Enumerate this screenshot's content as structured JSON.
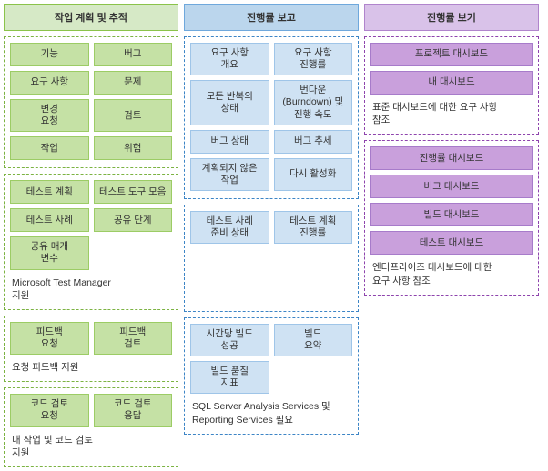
{
  "colors": {
    "green_header_bg": "#d6e9c6",
    "green_header_border": "#8bc34a",
    "green_item_bg": "#c5e1a5",
    "green_item_border": "#9ccc65",
    "green_dash": "#7cb342",
    "blue_header_bg": "#bbd6ed",
    "blue_header_border": "#6fa8dc",
    "blue_item_bg": "#cfe2f3",
    "blue_item_border": "#9fc5e8",
    "blue_dash": "#3d85c6",
    "purple_header_bg": "#d9c2e9",
    "purple_header_border": "#b084cc",
    "purple_item_bg": "#c9a0dc",
    "purple_item_border": "#a77bca",
    "purple_dash": "#8e44ad",
    "text": "#333333"
  },
  "col1": {
    "header": "작업 계획 및 추적",
    "sections": [
      {
        "items": [
          "기능",
          "버그",
          "요구 사항",
          "문제",
          "변경\n요청",
          "검토",
          "작업",
          "위험"
        ],
        "caption": null
      },
      {
        "items": [
          "테스트 계획",
          "테스트 도구 모음",
          "테스트 사례",
          "공유 단계",
          "공유 매개\n변수",
          ""
        ],
        "caption": "Microsoft Test Manager\n지원",
        "hide_empty": true
      },
      {
        "items": [
          "피드백\n요청",
          "피드백\n검토"
        ],
        "caption": "요청 피드백 지원"
      },
      {
        "items": [
          "코드 검토\n요청",
          "코드 검토\n응답"
        ],
        "caption": "내 작업 및 코드 검토\n지원"
      }
    ]
  },
  "col2": {
    "header": "진행률 보고",
    "sections": [
      {
        "items": [
          "요구 사항\n개요",
          "요구 사항\n진행률",
          "모든 반복의\n상태",
          "번다운(Burndown) 및 진행 속도",
          "버그 상태",
          "버그 추세",
          "계획되지 않은\n작업",
          "다시 활성화"
        ],
        "caption": null
      },
      {
        "items": [
          "테스트 사례\n준비 상태",
          "테스트 계획\n진행률"
        ],
        "caption": null,
        "tall": true
      },
      {
        "items": [
          "시간당 빌드\n성공",
          "빌드\n요약",
          "빌드 품질\n지표",
          ""
        ],
        "caption": "SQL Server Analysis Services 및 Reporting Services 필요",
        "hide_empty": true
      }
    ]
  },
  "col3": {
    "header": "진행률 보기",
    "sections": [
      {
        "items": [
          "프로젝트 대시보드",
          "내 대시보드"
        ],
        "single_col": true,
        "caption": "표준 대시보드에 대한 요구 사항\n참조"
      },
      {
        "items": [
          "진행률 대시보드",
          "버그 대시보드",
          "빌드 대시보드",
          "테스트 대시보드"
        ],
        "single_col": true,
        "caption": "엔터프라이즈 대시보드에 대한\n요구 사항 참조"
      }
    ]
  }
}
